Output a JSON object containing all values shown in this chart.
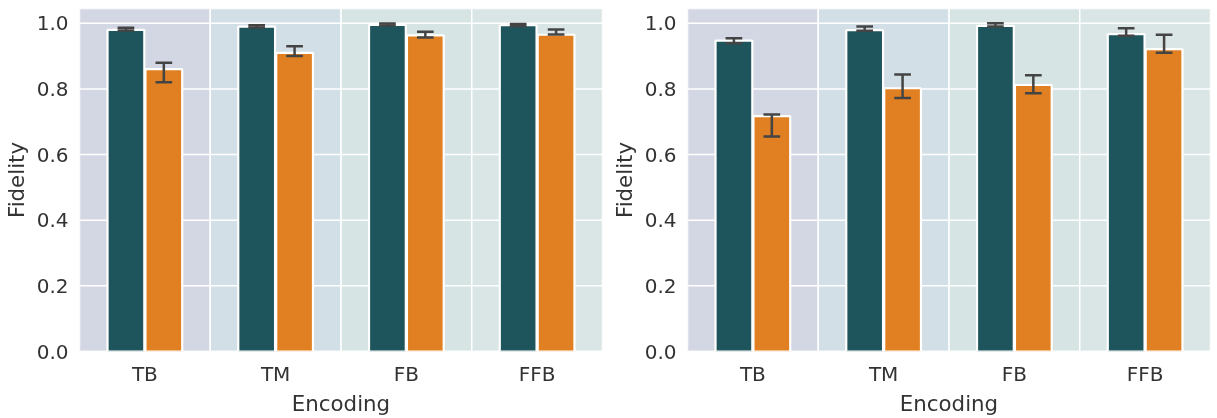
{
  "chart_data": [
    {
      "type": "bar",
      "xlabel": "Encoding",
      "ylabel": "Fidelity",
      "categories": [
        "TB",
        "TM",
        "FB",
        "FFB"
      ],
      "series": [
        {
          "color": "#1e545c",
          "values": [
            0.98,
            0.99,
            0.995,
            0.994
          ],
          "errors": [
            [
              0.978,
              0.986
            ],
            [
              0.987,
              0.994
            ],
            [
              0.993,
              0.999
            ],
            [
              0.992,
              0.998
            ]
          ]
        },
        {
          "color": "#e08022",
          "values": [
            0.86,
            0.91,
            0.963,
            0.965
          ],
          "errors": [
            [
              0.82,
              0.88
            ],
            [
              0.9,
              0.93
            ],
            [
              0.957,
              0.974
            ],
            [
              0.966,
              0.981
            ]
          ]
        }
      ],
      "ylim": [
        0,
        1.045
      ],
      "yticks": [
        {
          "value": 0,
          "label": "0.0"
        },
        {
          "value": 0.2,
          "label": "0.2"
        },
        {
          "value": 0.4,
          "label": "0.4"
        },
        {
          "value": 0.6,
          "label": "0.6"
        },
        {
          "value": 0.8,
          "label": "0.8"
        },
        {
          "value": 1,
          "label": "1.0"
        }
      ],
      "grid": "y",
      "bands": [
        {
          "axis": "x",
          "from": "TB",
          "to": "TB",
          "color": "#d3d7e3"
        },
        {
          "axis": "x",
          "from": "TM",
          "to": "TM",
          "color": "#d3dfe6"
        },
        {
          "axis": "x",
          "from": "FB",
          "to": "FB",
          "color": "#d7e4e4"
        },
        {
          "axis": "x",
          "from": "FFB",
          "to": "FFB",
          "color": "#dae6e5"
        }
      ]
    },
    {
      "type": "bar",
      "xlabel": "Encoding",
      "ylabel": "Fidelity",
      "categories": [
        "TB",
        "TM",
        "FB",
        "FFB"
      ],
      "series": [
        {
          "color": "#1e545c",
          "values": [
            0.947,
            0.979,
            0.992,
            0.967
          ],
          "errors": [
            [
              0.939,
              0.954
            ],
            [
              0.977,
              0.99
            ],
            [
              0.99,
              1.0
            ],
            [
              0.962,
              0.985
            ]
          ]
        },
        {
          "color": "#e08022",
          "values": [
            0.717,
            0.802,
            0.812,
            0.921
          ],
          "errors": [
            [
              0.655,
              0.722
            ],
            [
              0.772,
              0.844
            ],
            [
              0.787,
              0.842
            ],
            [
              0.91,
              0.965
            ]
          ]
        }
      ],
      "ylim": [
        0,
        1.045
      ],
      "yticks": [
        {
          "value": 0,
          "label": "0.0"
        },
        {
          "value": 0.2,
          "label": "0.2"
        },
        {
          "value": 0.4,
          "label": "0.4"
        },
        {
          "value": 0.6,
          "label": "0.6"
        },
        {
          "value": 0.8,
          "label": "0.8"
        },
        {
          "value": 1,
          "label": "1.0"
        }
      ],
      "grid": "y",
      "bands": [
        {
          "axis": "x",
          "from": "TB",
          "to": "TB",
          "color": "#d3d7e3"
        },
        {
          "axis": "x",
          "from": "TM",
          "to": "TM",
          "color": "#d3dfe6"
        },
        {
          "axis": "x",
          "from": "FB",
          "to": "FB",
          "color": "#d7e4e4"
        },
        {
          "axis": "x",
          "from": "FFB",
          "to": "FFB",
          "color": "#dae6e5"
        }
      ]
    }
  ]
}
